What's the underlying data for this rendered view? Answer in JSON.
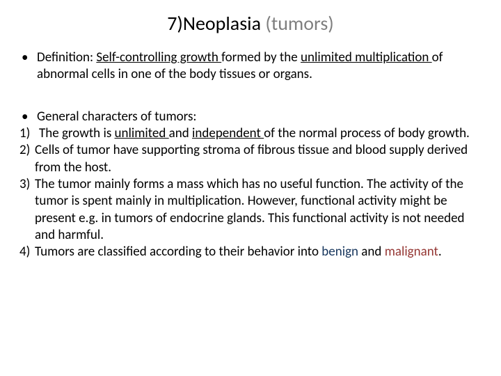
{
  "title": {
    "prefix": "7)Neoplasia",
    "suffix": " (tumors)",
    "fontsize": 28,
    "color_prefix": "#000000",
    "color_suffix": "#7f7f7f"
  },
  "definition": {
    "lead": "Definition: ",
    "part_u1": "Self-controlling growth ",
    "mid1": "formed by the ",
    "part_u2": "unlimited multiplication ",
    "tail": "of abnormal cells in one of the body tissues or organs."
  },
  "general_heading": "General characters of tumors:",
  "items": [
    {
      "num": "1)",
      "leading": "The growth is ",
      "u1": "unlimited ",
      "mid": "and ",
      "u2": "independent ",
      "tail": "of the normal process of body growth."
    },
    {
      "num": "2)",
      "text": "Cells of tumor have supporting stroma of fibrous tissue and blood supply derived from the host."
    },
    {
      "num": "3)",
      "text": "The tumor mainly forms a mass which has no useful function. The activity of the tumor is spent mainly in multiplication. However, functional activity might be present e.g. in tumors of endocrine glands. This functional activity is not needed and harmful."
    },
    {
      "num": "4)",
      "lead": "Tumors are classified according to their behavior into ",
      "benign": "benign",
      "and": " and ",
      "malignant": "malignant",
      "period": "."
    }
  ],
  "colors": {
    "text": "#000000",
    "benign": "#17365d",
    "malignant": "#953734",
    "background": "#ffffff"
  },
  "body_fontsize": 19
}
